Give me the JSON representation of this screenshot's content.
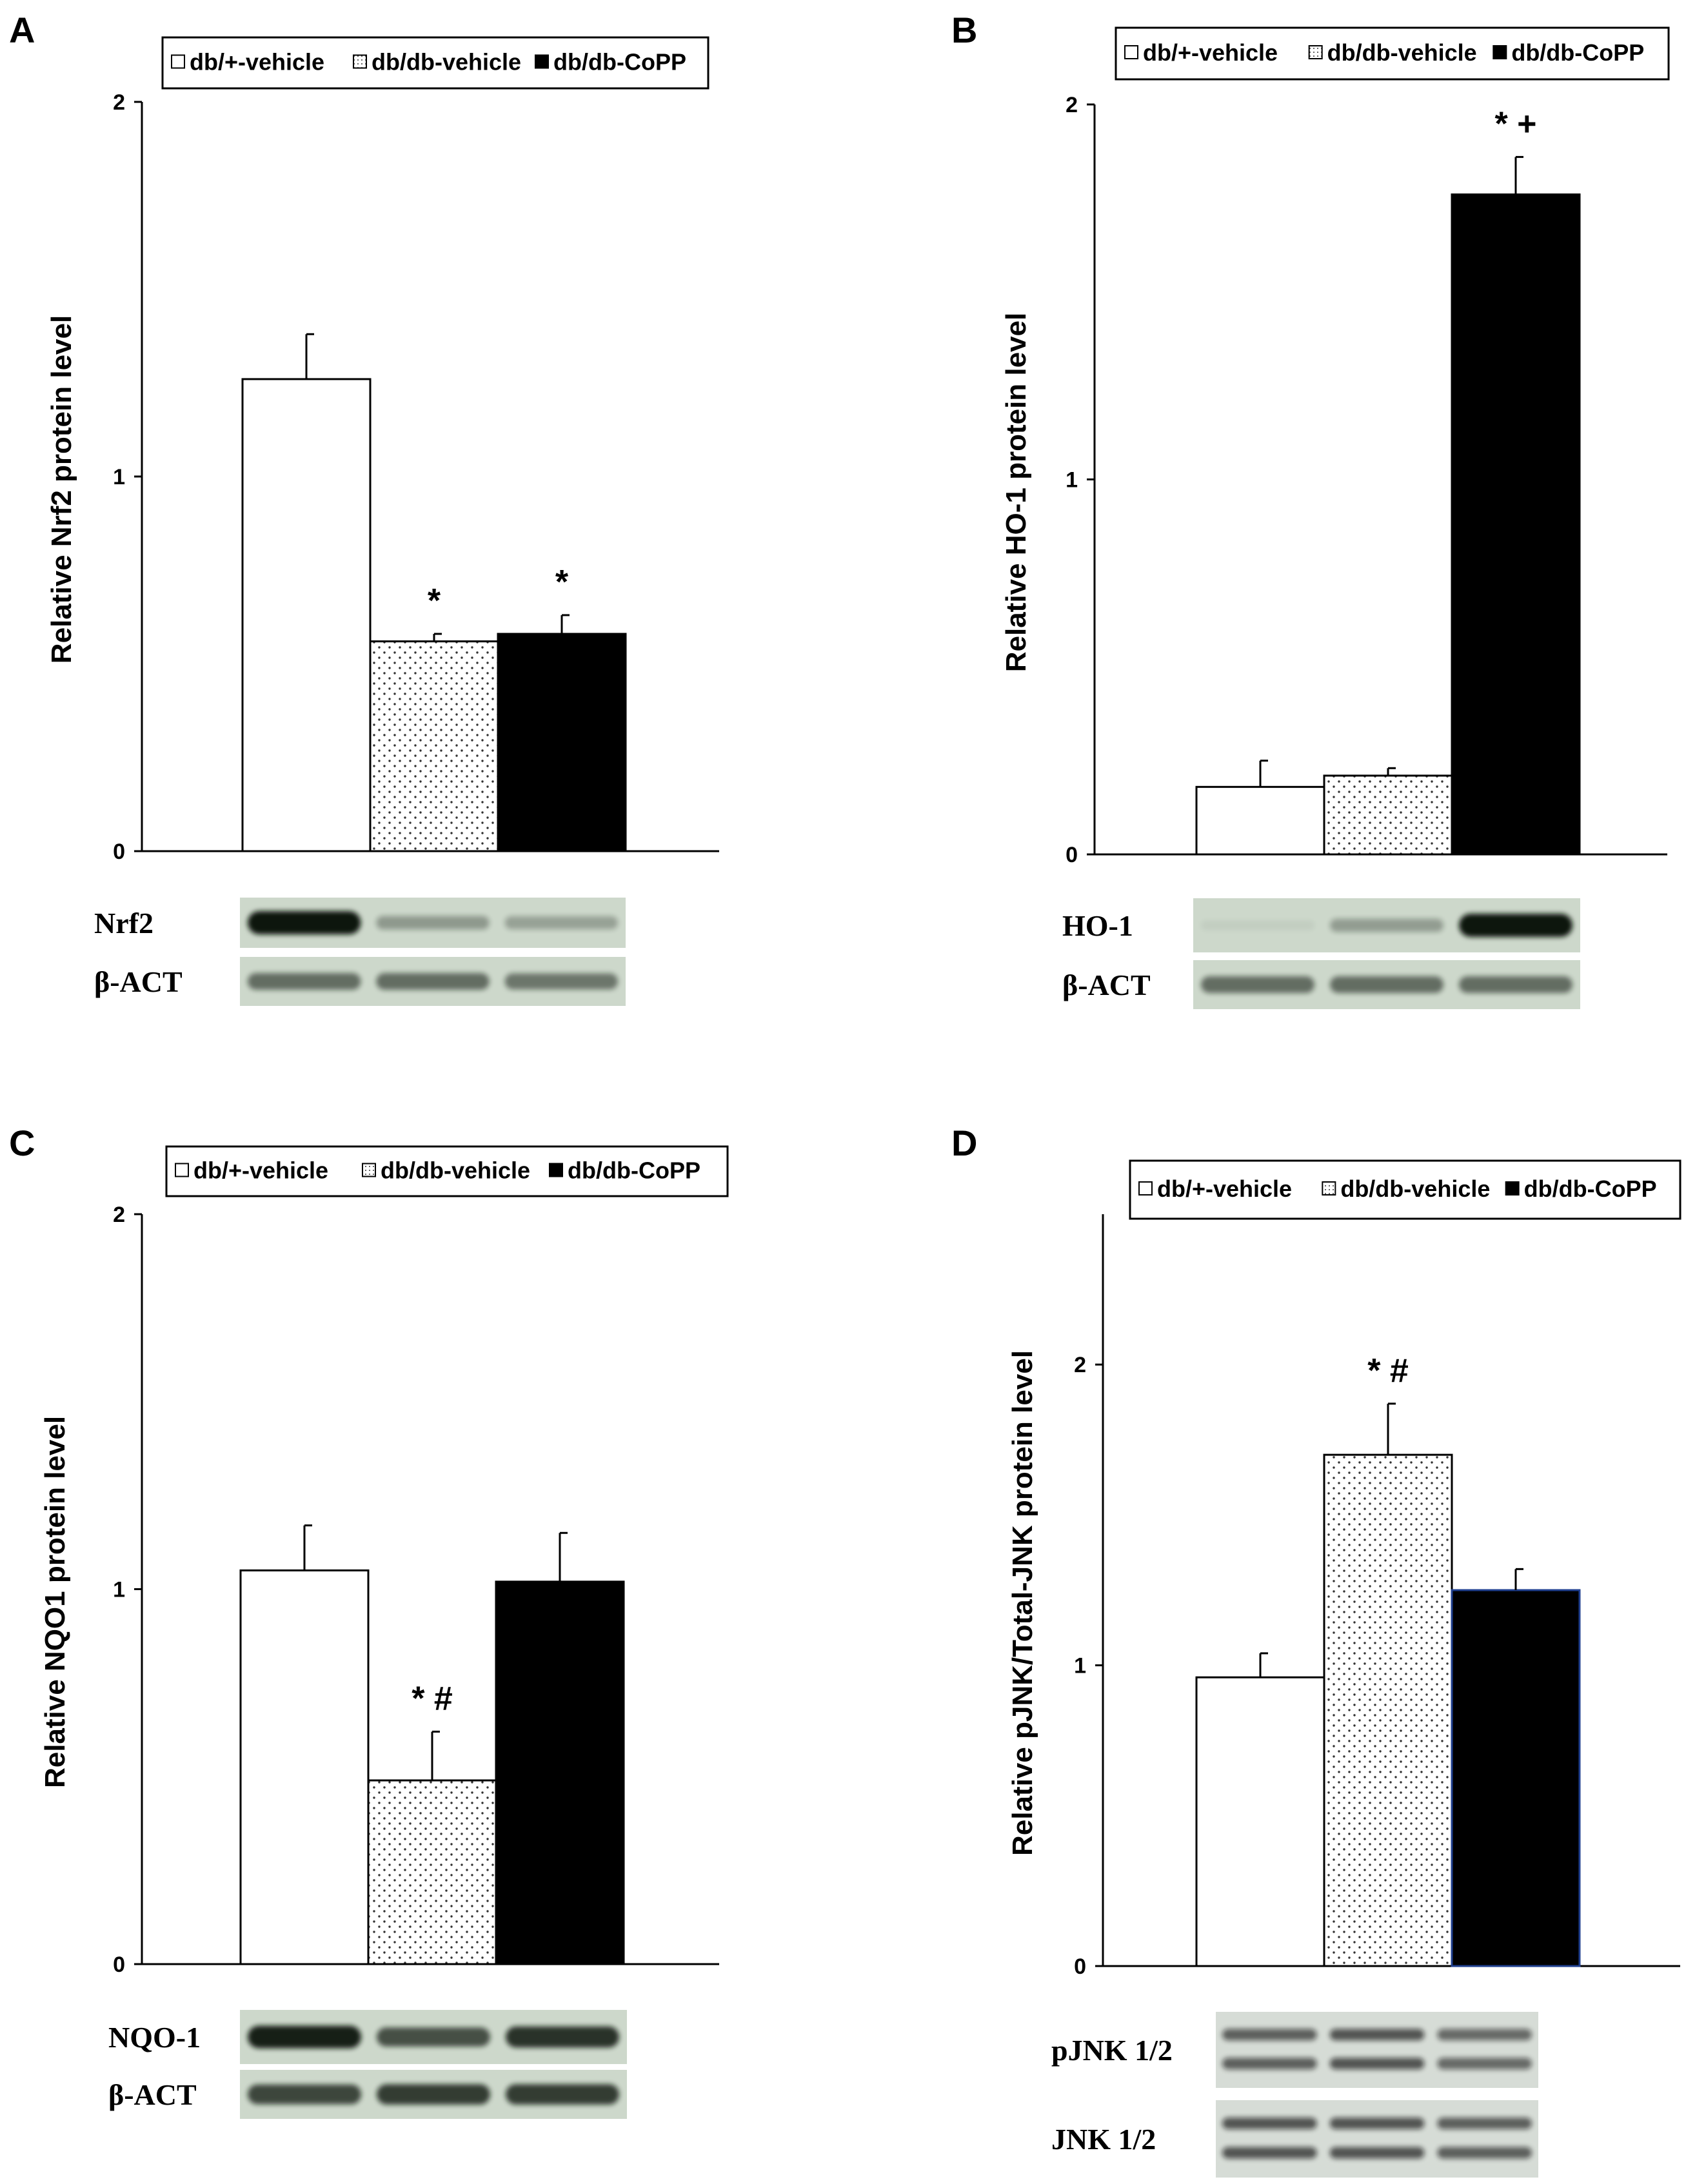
{
  "legend_labels": [
    "db/+-vehicle",
    "db/db-vehicle",
    "db/db-CoPP"
  ],
  "colors": {
    "db_plus_vehicle": "#ffffff",
    "db_db_vehicle": "#f7f7f7",
    "db_db_copp": "#000000",
    "axis": "#000000"
  },
  "chart_data": [
    {
      "panel": "A",
      "type": "bar",
      "title": "",
      "xlabel": "",
      "ylabel": "Relative Nrf2 protein level",
      "ylim": [
        0,
        2
      ],
      "yticks": [
        "0",
        "1",
        "2"
      ],
      "grid": false,
      "legend": "top",
      "categories": [
        "db/+-vehicle",
        "db/db-vehicle",
        "db/db-CoPP"
      ],
      "values": [
        1.26,
        0.56,
        0.58
      ],
      "errors": [
        0.12,
        0.02,
        0.05
      ],
      "annotations": [
        "",
        "*",
        "*"
      ],
      "blot": {
        "rows": [
          "Nrf2",
          "β-ACT"
        ],
        "bands": [
          [
            1.0,
            0.32,
            0.28
          ],
          [
            0.55,
            0.55,
            0.5
          ]
        ]
      }
    },
    {
      "panel": "B",
      "type": "bar",
      "title": "",
      "xlabel": "",
      "ylabel": "Relative HO-1 protein level",
      "ylim": [
        0,
        2
      ],
      "yticks": [
        "0",
        "1",
        "2"
      ],
      "grid": false,
      "legend": "top",
      "categories": [
        "db/+-vehicle",
        "db/db-vehicle",
        "db/db-CoPP"
      ],
      "values": [
        0.18,
        0.21,
        1.76
      ],
      "errors": [
        0.07,
        0.02,
        0.1
      ],
      "annotations": [
        "",
        "",
        "* +"
      ],
      "blot": {
        "rows": [
          "HO-1",
          "β-ACT"
        ],
        "bands": [
          [
            0.05,
            0.3,
            1.0
          ],
          [
            0.55,
            0.55,
            0.55
          ]
        ]
      }
    },
    {
      "panel": "C",
      "type": "bar",
      "title": "",
      "xlabel": "",
      "ylabel": "Relative NQO1 protein level",
      "ylim": [
        0,
        2
      ],
      "yticks": [
        "0",
        "1",
        "2"
      ],
      "grid": false,
      "legend": "top",
      "categories": [
        "db/+-vehicle",
        "db/db-vehicle",
        "db/db-CoPP"
      ],
      "values": [
        1.05,
        0.49,
        1.02
      ],
      "errors": [
        0.12,
        0.13,
        0.13
      ],
      "annotations": [
        "",
        "* #",
        ""
      ],
      "blot": {
        "rows": [
          "NQO-1",
          "β-ACT"
        ],
        "bands": [
          [
            0.95,
            0.7,
            0.85
          ],
          [
            0.75,
            0.8,
            0.8
          ]
        ]
      }
    },
    {
      "panel": "D",
      "type": "bar",
      "title": "",
      "xlabel": "",
      "ylabel": "Relative pJNK/Total-JNK protein level",
      "ylim": [
        0,
        2.5
      ],
      "yticks": [
        "0",
        "1",
        "2"
      ],
      "grid": false,
      "legend": "top",
      "categories": [
        "db/+-vehicle",
        "db/db-vehicle",
        "db/db-CoPP"
      ],
      "values": [
        0.96,
        1.7,
        1.25
      ],
      "errors": [
        0.08,
        0.17,
        0.07
      ],
      "annotations": [
        "",
        "* #",
        ""
      ],
      "blot": {
        "rows": [
          "pJNK 1/2",
          "JNK 1/2"
        ],
        "bands": [
          [
            0.6,
            0.65,
            0.55
          ],
          [
            0.65,
            0.65,
            0.6
          ]
        ]
      }
    }
  ]
}
